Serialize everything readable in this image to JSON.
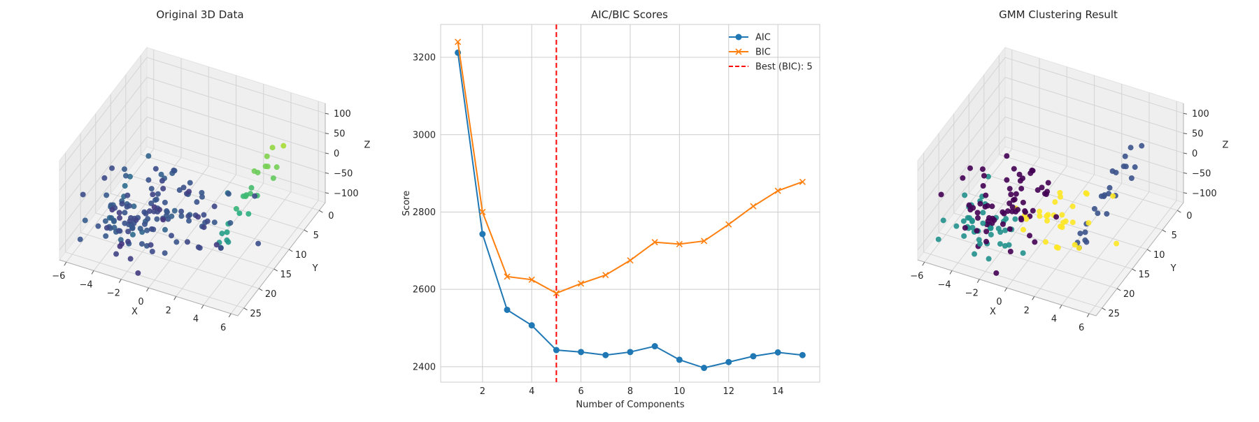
{
  "figure": {
    "panels": [
      "Original 3D Data",
      "AIC/BIC Scores",
      "GMM Clustering Result"
    ]
  },
  "chart_data": [
    {
      "type": "scatter",
      "subtype": "3d",
      "title": "Original 3D Data",
      "xlabel": "X",
      "ylabel": "Y",
      "zlabel": "Z",
      "x_ticks": [
        "−6",
        "−4",
        "−2",
        "0",
        "2",
        "4",
        "6"
      ],
      "y_ticks": [
        "0",
        "5",
        "10",
        "15",
        "20",
        "25"
      ],
      "z_ticks": [
        "−100",
        "−50",
        "0",
        "50",
        "100"
      ],
      "xlim": [
        -6.5,
        6.5
      ],
      "ylim": [
        -2,
        27
      ],
      "zlim": [
        -125,
        125
      ],
      "colormap": "viridis",
      "color_by": "y",
      "grid": true
    },
    {
      "type": "line",
      "title": "AIC/BIC Scores",
      "xlabel": "Number of Components",
      "ylabel": "Score",
      "x": [
        1,
        2,
        3,
        4,
        5,
        6,
        7,
        8,
        9,
        10,
        11,
        12,
        13,
        14,
        15
      ],
      "series": [
        {
          "name": "AIC",
          "marker": "o",
          "color": "#1f77b4",
          "values": [
            3212,
            2743,
            2547,
            2507,
            2443,
            2438,
            2430,
            2438,
            2453,
            2418,
            2397,
            2412,
            2427,
            2437,
            2430
          ]
        },
        {
          "name": "BIC",
          "marker": "x",
          "color": "#ff7f0e",
          "values": [
            3240,
            2800,
            2633,
            2625,
            2590,
            2615,
            2637,
            2675,
            2722,
            2717,
            2725,
            2768,
            2815,
            2855,
            2878
          ]
        }
      ],
      "vline": {
        "x": 5,
        "name": "Best (BIC): 5",
        "color": "#ff0000",
        "style": "dashed"
      },
      "x_ticks": [
        2,
        4,
        6,
        8,
        10,
        12,
        14
      ],
      "y_ticks": [
        2400,
        2600,
        2800,
        3000,
        3200
      ],
      "xlim": [
        0.3,
        15.7
      ],
      "ylim": [
        2360,
        3285
      ],
      "legend": "top-right",
      "grid": true
    },
    {
      "type": "scatter",
      "subtype": "3d",
      "title": "GMM Clustering Result",
      "xlabel": "X",
      "ylabel": "Y",
      "zlabel": "Z",
      "x_ticks": [
        "−6",
        "−4",
        "−2",
        "0",
        "2",
        "4",
        "6"
      ],
      "y_ticks": [
        "0",
        "5",
        "10",
        "15",
        "20",
        "25"
      ],
      "z_ticks": [
        "−100",
        "−50",
        "0",
        "50",
        "100"
      ],
      "xlim": [
        -6.5,
        6.5
      ],
      "ylim": [
        -2,
        27
      ],
      "zlim": [
        -125,
        125
      ],
      "colormap": "viridis",
      "color_by": "cluster",
      "cluster_colors": [
        "#440154",
        "#3b528b",
        "#21918c",
        "#5ec962",
        "#fde725"
      ],
      "grid": true
    }
  ]
}
